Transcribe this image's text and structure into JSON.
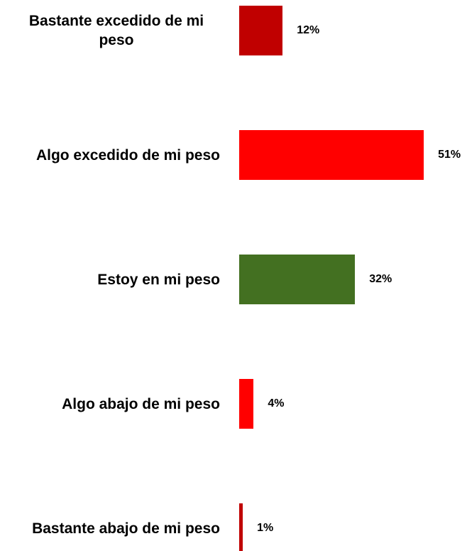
{
  "chart_data": {
    "type": "barh",
    "categories": [
      "Bastante excedido de mi peso",
      "Algo excedido de mi peso",
      "Estoy en mi peso",
      "Algo abajo de mi peso",
      "Bastante abajo de mi peso"
    ],
    "values": [
      12,
      51,
      32,
      4,
      1
    ],
    "value_labels": [
      "12%",
      "51%",
      "32%",
      "4%",
      "1%"
    ],
    "colors": [
      "#c00000",
      "#ff0000",
      "#437021",
      "#ff0000",
      "#c00000"
    ]
  }
}
